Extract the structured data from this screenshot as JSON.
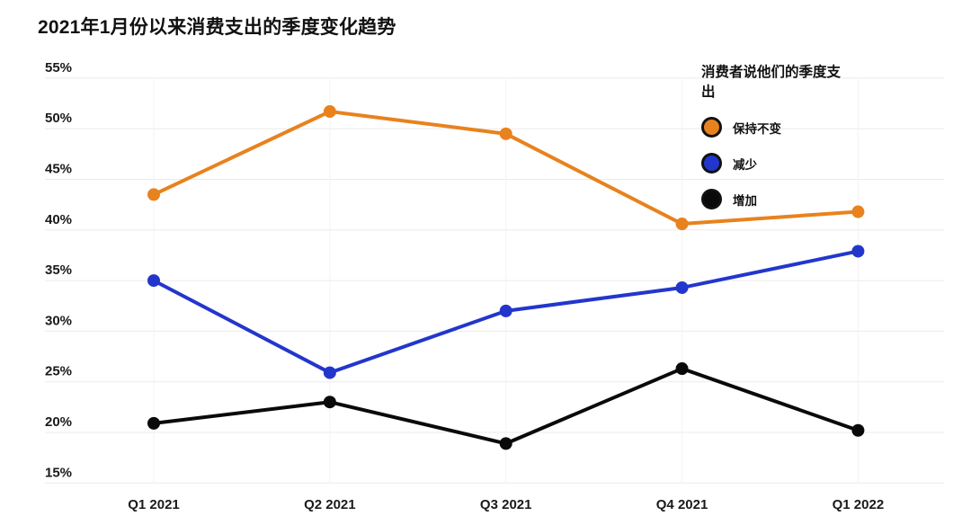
{
  "page_title": "2021年1月份以来消费支出的季度变化趋势",
  "legend": {
    "title": "消费者说他们的季度支出"
  },
  "chart_data": {
    "type": "line",
    "title": "2021年1月份以来消费支出的季度变化趋势",
    "categories": [
      "Q1 2021",
      "Q2 2021",
      "Q3 2021",
      "Q4 2021",
      "Q1 2022"
    ],
    "series": [
      {
        "name": "保持不变",
        "color": "#E8821E",
        "values": [
          43.5,
          51.7,
          49.5,
          40.6,
          41.8
        ]
      },
      {
        "name": "减少",
        "color": "#2336CC",
        "values": [
          35.0,
          25.9,
          32.0,
          34.3,
          37.9
        ]
      },
      {
        "name": "增加",
        "color": "#0A0A0A",
        "values": [
          20.9,
          23.0,
          18.9,
          26.3,
          20.2
        ]
      }
    ],
    "xlabel": "",
    "ylabel": "",
    "ylim": [
      15,
      55
    ],
    "ytick_step": 5,
    "ytick_suffix": "%",
    "grid": true,
    "legend_title": "消费者说他们的季度支出",
    "legend_position": "top-right",
    "colors": {
      "orange": "#E8821E",
      "blue": "#2336CC",
      "black": "#0A0A0A",
      "gridline": "#ebebeb"
    }
  }
}
